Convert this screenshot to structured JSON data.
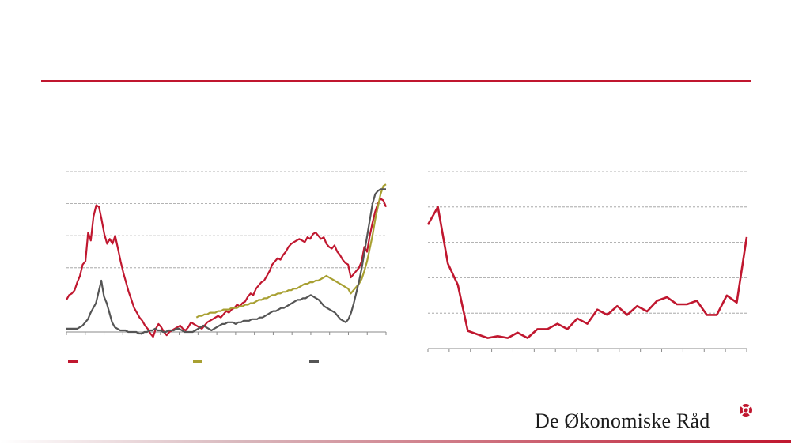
{
  "branding": {
    "logo_text": "De Økonomiske Råd",
    "accent_color": "#c0172f",
    "logo_icon": "cross-in-circle-icon"
  },
  "chart_data": [
    {
      "type": "line",
      "position": "left",
      "grid": true,
      "ylim": [
        0,
        100
      ],
      "series": [
        {
          "color": "#c0172f",
          "values": [
            20,
            23,
            24,
            26,
            31,
            35,
            42,
            44,
            62,
            57,
            72,
            79,
            78,
            70,
            61,
            55,
            58,
            55,
            60,
            52,
            44,
            37,
            31,
            25,
            20,
            15,
            12,
            9,
            7,
            4,
            2,
            -1,
            -3,
            2,
            5,
            3,
            0,
            -2,
            0,
            1,
            2,
            3,
            4,
            2,
            1,
            3,
            6,
            5,
            4,
            3,
            2,
            4,
            6,
            7,
            8,
            9,
            10,
            9,
            11,
            13,
            12,
            14,
            15,
            17,
            16,
            18,
            19,
            22,
            24,
            23,
            27,
            29,
            31,
            32,
            35,
            38,
            42,
            44,
            46,
            45,
            48,
            50,
            53,
            55,
            56,
            57,
            58,
            57,
            56,
            59,
            58,
            61,
            62,
            60,
            58,
            59,
            55,
            53,
            52,
            54,
            50,
            48,
            45,
            43,
            42,
            34,
            36,
            38,
            40,
            44,
            53,
            50,
            60,
            68,
            75,
            80,
            83,
            82,
            78
          ]
        },
        {
          "color": "#a8a032",
          "values": [
            null,
            null,
            null,
            null,
            null,
            null,
            null,
            null,
            null,
            null,
            null,
            null,
            null,
            null,
            null,
            null,
            null,
            null,
            null,
            null,
            null,
            null,
            null,
            null,
            null,
            null,
            null,
            null,
            null,
            null,
            null,
            null,
            null,
            null,
            null,
            null,
            null,
            null,
            null,
            null,
            null,
            null,
            null,
            null,
            null,
            null,
            null,
            null,
            9,
            10,
            10,
            11,
            11,
            12,
            12,
            12,
            13,
            13,
            14,
            14,
            14,
            15,
            15,
            15,
            16,
            16,
            17,
            17,
            18,
            18,
            19,
            20,
            20,
            21,
            21,
            22,
            23,
            23,
            24,
            24,
            25,
            25,
            26,
            26,
            27,
            27,
            28,
            29,
            30,
            30,
            31,
            31,
            32,
            32,
            33,
            34,
            35,
            34,
            33,
            32,
            31,
            30,
            29,
            28,
            27,
            24,
            26,
            28,
            30,
            33,
            38,
            44,
            52,
            60,
            70,
            78,
            86,
            91,
            92
          ]
        },
        {
          "color": "#555555",
          "values": [
            2,
            2,
            2,
            2,
            2,
            3,
            4,
            6,
            8,
            12,
            15,
            18,
            25,
            32,
            22,
            18,
            12,
            6,
            3,
            2,
            1,
            1,
            1,
            0,
            0,
            0,
            0,
            -1,
            -1,
            0,
            0,
            1,
            1,
            2,
            1,
            1,
            0,
            0,
            1,
            1,
            1,
            2,
            2,
            1,
            0,
            0,
            0,
            0,
            1,
            2,
            3,
            4,
            3,
            2,
            1,
            2,
            3,
            4,
            5,
            5,
            6,
            6,
            6,
            5,
            6,
            6,
            7,
            7,
            7,
            8,
            8,
            8,
            9,
            9,
            10,
            11,
            12,
            13,
            13,
            14,
            15,
            15,
            16,
            17,
            18,
            19,
            20,
            20,
            21,
            21,
            22,
            23,
            22,
            21,
            20,
            18,
            16,
            15,
            14,
            13,
            12,
            10,
            8,
            7,
            6,
            8,
            12,
            18,
            25,
            32,
            40,
            50,
            60,
            70,
            80,
            86,
            88,
            89,
            89,
            89
          ]
        }
      ]
    },
    {
      "type": "line",
      "position": "right",
      "grid": true,
      "ylim": [
        0,
        5
      ],
      "series": [
        {
          "color": "#c0172f",
          "values": [
            3.5,
            4.0,
            2.4,
            1.8,
            0.5,
            0.4,
            0.3,
            0.35,
            0.3,
            0.45,
            0.3,
            0.55,
            0.55,
            0.7,
            0.55,
            0.85,
            0.7,
            1.1,
            0.95,
            1.2,
            0.95,
            1.2,
            1.05,
            1.35,
            1.45,
            1.25,
            1.25,
            1.35,
            0.95,
            0.95,
            1.5,
            1.3,
            3.15
          ]
        }
      ]
    }
  ]
}
